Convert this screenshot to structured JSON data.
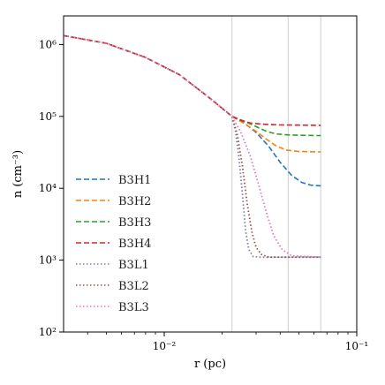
{
  "chart_data": {
    "type": "line",
    "xlabel": "r (pc)",
    "ylabel": "n  (cm⁻³)",
    "xscale": "log",
    "yscale": "log",
    "xlim": [
      0.003,
      0.1
    ],
    "ylim": [
      100,
      2500000
    ],
    "grid": false,
    "legend_position": "lower-left",
    "xticks": [
      {
        "value": 0.01,
        "label": "10⁻²"
      },
      {
        "value": 0.1,
        "label": "10⁻¹"
      }
    ],
    "yticks": [
      {
        "value": 100,
        "label": "10²"
      },
      {
        "value": 1000,
        "label": "10³"
      },
      {
        "value": 10000,
        "label": "10⁴"
      },
      {
        "value": 100000,
        "label": "10⁵"
      },
      {
        "value": 1000000,
        "label": "10⁶"
      }
    ],
    "reference_lines_x": [
      0.0225,
      0.044,
      0.065
    ],
    "series": [
      {
        "name": "B3H1",
        "color": "#1f77b4",
        "style": "dashed",
        "x": [
          0.003,
          0.005,
          0.008,
          0.012,
          0.017,
          0.0225,
          0.026,
          0.03,
          0.035,
          0.04,
          0.046,
          0.052,
          0.058,
          0.065
        ],
        "y": [
          1330000,
          1040000,
          660000,
          380000,
          185000,
          100000,
          81000,
          60000,
          38000,
          23000,
          15000,
          12000,
          11000,
          10800
        ]
      },
      {
        "name": "B3H2",
        "color": "#ff7f0e",
        "style": "dashed",
        "x": [
          0.003,
          0.005,
          0.008,
          0.012,
          0.017,
          0.0225,
          0.026,
          0.03,
          0.034,
          0.038,
          0.043,
          0.05,
          0.065
        ],
        "y": [
          1330000,
          1040000,
          660000,
          380000,
          185000,
          100000,
          80000,
          62000,
          48000,
          39000,
          34000,
          32500,
          32000
        ]
      },
      {
        "name": "B3H3",
        "color": "#2ca02c",
        "style": "dashed",
        "x": [
          0.003,
          0.005,
          0.008,
          0.012,
          0.017,
          0.0225,
          0.026,
          0.03,
          0.034,
          0.038,
          0.045,
          0.065
        ],
        "y": [
          1330000,
          1040000,
          660000,
          380000,
          185000,
          100000,
          86000,
          72000,
          62000,
          57000,
          55000,
          54000
        ]
      },
      {
        "name": "B3H4",
        "color": "#d62728",
        "style": "dashed",
        "x": [
          0.003,
          0.005,
          0.008,
          0.012,
          0.017,
          0.0225,
          0.025,
          0.028,
          0.032,
          0.04,
          0.065
        ],
        "y": [
          1330000,
          1040000,
          660000,
          380000,
          185000,
          100000,
          88000,
          81000,
          78000,
          76000,
          75000
        ]
      },
      {
        "name": "B3L1",
        "color": "#7f7f9f",
        "style": "dotted",
        "x": [
          0.003,
          0.005,
          0.008,
          0.012,
          0.017,
          0.0225,
          0.0235,
          0.0245,
          0.0255,
          0.0265,
          0.0275,
          0.029,
          0.032,
          0.065
        ],
        "y": [
          1330000,
          1040000,
          660000,
          380000,
          185000,
          100000,
          60000,
          25000,
          8000,
          2500,
          1400,
          1120,
          1100,
          1100
        ]
      },
      {
        "name": "B3L2",
        "color": "#8c564b",
        "style": "dotted",
        "x": [
          0.003,
          0.005,
          0.008,
          0.012,
          0.017,
          0.0225,
          0.024,
          0.0255,
          0.027,
          0.0285,
          0.03,
          0.032,
          0.035,
          0.065
        ],
        "y": [
          1330000,
          1040000,
          660000,
          380000,
          185000,
          100000,
          55000,
          20000,
          6000,
          2500,
          1500,
          1200,
          1100,
          1100
        ]
      },
      {
        "name": "B3L3",
        "color": "#e377c2",
        "style": "dotted",
        "x": [
          0.003,
          0.005,
          0.008,
          0.012,
          0.017,
          0.0225,
          0.025,
          0.028,
          0.031,
          0.034,
          0.037,
          0.041,
          0.046,
          0.065
        ],
        "y": [
          1330000,
          1040000,
          660000,
          380000,
          185000,
          100000,
          60000,
          28000,
          11000,
          4500,
          2200,
          1400,
          1150,
          1100
        ]
      }
    ]
  }
}
